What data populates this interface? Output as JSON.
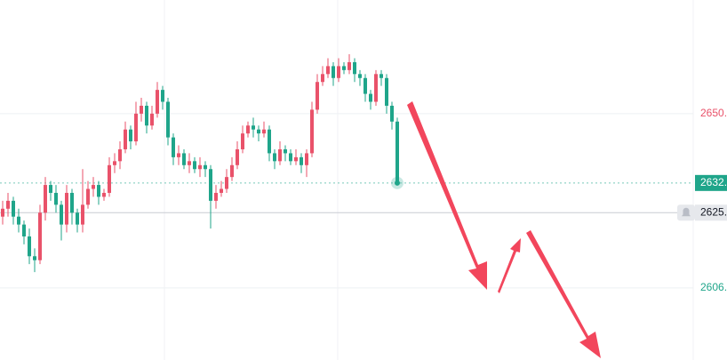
{
  "chart_data": {
    "type": "candlestick",
    "up_color": "#e9526a",
    "down_color": "#1fa58a",
    "ylim": [
      2587.8,
      2678.7
    ],
    "yticks": [
      {
        "value": 2650,
        "label": "2650."
      },
      {
        "value": 2606,
        "label": "2606."
      }
    ],
    "grid": true,
    "open": [
      2624,
      2626,
      2628,
      2624,
      2622,
      2619,
      2614,
      2613,
      2625,
      2632,
      2630,
      2627,
      2622,
      2630,
      2625,
      2622,
      2627,
      2631,
      2632,
      2629,
      2630,
      2637,
      2638,
      2641,
      2646,
      2643,
      2650,
      2652,
      2647,
      2650,
      2656,
      2653,
      2644,
      2639,
      2640,
      2637,
      2638,
      2636,
      2637,
      2636,
      2628,
      2630,
      2631,
      2634,
      2637,
      2641,
      2645,
      2647,
      2646,
      2645,
      2646,
      2640,
      2638,
      2641,
      2640,
      2638,
      2639,
      2637,
      2640,
      2651,
      2658,
      2660,
      2662,
      2659,
      2662,
      2661,
      2663,
      2660,
      2659,
      2655,
      2653,
      2660,
      2659,
      2652,
      2648
    ],
    "high": [
      2628,
      2630,
      2629,
      2626,
      2623,
      2621,
      2616,
      2627,
      2634,
      2633,
      2632,
      2628,
      2632,
      2631,
      2626,
      2636,
      2633,
      2634,
      2633,
      2631,
      2639,
      2640,
      2643,
      2648,
      2647,
      2653,
      2654,
      2653,
      2652,
      2658,
      2657,
      2654,
      2645,
      2642,
      2641,
      2640,
      2639,
      2639,
      2638,
      2637,
      2632,
      2633,
      2636,
      2639,
      2643,
      2647,
      2648,
      2649,
      2647,
      2648,
      2647,
      2641,
      2643,
      2642,
      2641,
      2641,
      2640,
      2641,
      2653,
      2660,
      2662,
      2664,
      2663,
      2664,
      2663,
      2665,
      2664,
      2661,
      2660,
      2656,
      2661,
      2661,
      2660,
      2653,
      2649
    ],
    "low": [
      2622,
      2624,
      2622,
      2620,
      2617,
      2612,
      2610,
      2612,
      2623,
      2628,
      2625,
      2618,
      2620,
      2622,
      2620,
      2620,
      2626,
      2629,
      2627,
      2628,
      2629,
      2635,
      2636,
      2640,
      2641,
      2642,
      2648,
      2645,
      2646,
      2649,
      2651,
      2642,
      2637,
      2637,
      2636,
      2635,
      2635,
      2634,
      2634,
      2621,
      2626,
      2629,
      2630,
      2633,
      2636,
      2640,
      2644,
      2644,
      2643,
      2644,
      2638,
      2636,
      2637,
      2638,
      2637,
      2637,
      2635,
      2634,
      2639,
      2650,
      2657,
      2659,
      2657,
      2658,
      2660,
      2660,
      2658,
      2657,
      2653,
      2651,
      2652,
      2657,
      2650,
      2646,
      2632
    ],
    "close": [
      2626,
      2628,
      2624,
      2622,
      2619,
      2614,
      2613,
      2625,
      2632,
      2630,
      2627,
      2622,
      2630,
      2625,
      2622,
      2627,
      2631,
      2632,
      2629,
      2630,
      2637,
      2638,
      2641,
      2646,
      2643,
      2650,
      2652,
      2647,
      2650,
      2656,
      2653,
      2644,
      2639,
      2640,
      2637,
      2638,
      2636,
      2637,
      2636,
      2628,
      2630,
      2631,
      2634,
      2637,
      2641,
      2645,
      2647,
      2646,
      2645,
      2646,
      2640,
      2638,
      2641,
      2640,
      2638,
      2639,
      2637,
      2640,
      2651,
      2658,
      2660,
      2662,
      2659,
      2662,
      2661,
      2663,
      2660,
      2659,
      2655,
      2653,
      2660,
      2659,
      2652,
      2648,
      2632.5
    ],
    "last_price_label": "2632.",
    "reference_line": {
      "value": 2625,
      "label": "2625."
    }
  }
}
